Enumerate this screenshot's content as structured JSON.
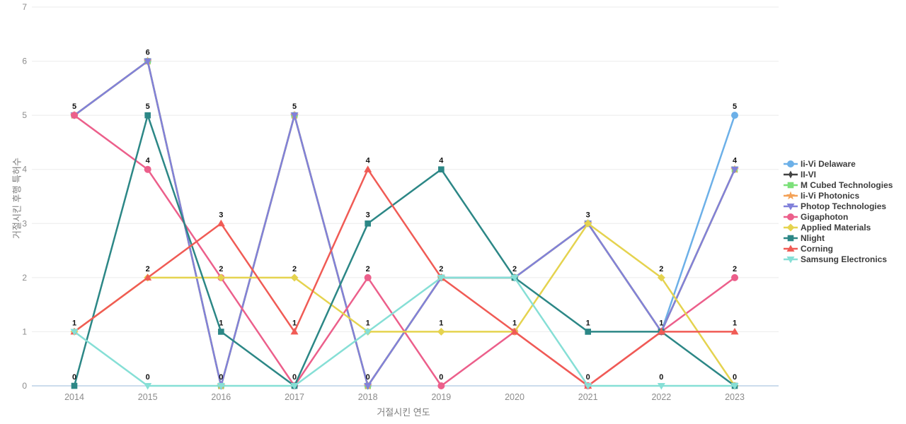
{
  "chart_data": {
    "type": "line",
    "title": "",
    "xlabel": "거절시킨 연도",
    "ylabel": "거절시킨 후행 특허수",
    "categories": [
      "2014",
      "2015",
      "2016",
      "2017",
      "2018",
      "2019",
      "2020",
      "2021",
      "2022",
      "2023"
    ],
    "ylim": [
      0,
      7
    ],
    "yticks": [
      0,
      1,
      2,
      3,
      4,
      5,
      6,
      7
    ],
    "grid": true,
    "legend_position": "right",
    "series": [
      {
        "name": "Ii-Vi Delaware",
        "color": "#6cb0e8",
        "marker": "circle",
        "values": [
          5,
          6,
          0,
          5,
          0,
          2,
          2,
          3,
          1,
          5
        ]
      },
      {
        "name": "II-VI",
        "color": "#434343",
        "marker": "thin-diamond",
        "values": [
          5,
          6,
          0,
          5,
          0,
          2,
          2,
          3,
          1,
          4
        ]
      },
      {
        "name": "M Cubed Technologies",
        "color": "#7ce07a",
        "marker": "square",
        "values": [
          5,
          6,
          0,
          5,
          0,
          2,
          2,
          3,
          1,
          4
        ]
      },
      {
        "name": "Ii-Vi Photonics",
        "color": "#f4a258",
        "marker": "star",
        "values": [
          5,
          6,
          0,
          5,
          0,
          2,
          2,
          3,
          1,
          4
        ]
      },
      {
        "name": "Photop Technologies",
        "color": "#8181da",
        "marker": "tri-down",
        "values": [
          5,
          6,
          0,
          5,
          0,
          2,
          2,
          3,
          1,
          4
        ]
      },
      {
        "name": "Gigaphoton",
        "color": "#ec5f8b",
        "marker": "circle",
        "values": [
          5,
          4,
          2,
          0,
          2,
          0,
          1,
          0,
          1,
          2
        ]
      },
      {
        "name": "Applied Materials",
        "color": "#e5d34f",
        "marker": "diamond",
        "values": [
          1,
          2,
          2,
          2,
          1,
          1,
          1,
          3,
          2,
          0
        ]
      },
      {
        "name": "Nlight",
        "color": "#2c8786",
        "marker": "square",
        "values": [
          0,
          5,
          1,
          0,
          3,
          4,
          2,
          1,
          1,
          0
        ]
      },
      {
        "name": "Corning",
        "color": "#f05b55",
        "marker": "triangle-up",
        "values": [
          1,
          2,
          3,
          1,
          4,
          2,
          1,
          0,
          1,
          1
        ]
      },
      {
        "name": "Samsung Electronics",
        "color": "#86dfd6",
        "marker": "triangle-down",
        "values": [
          1,
          0,
          0,
          0,
          1,
          2,
          2,
          0,
          0,
          0
        ]
      }
    ],
    "point_labels": {
      "2014": [
        5,
        1,
        0
      ],
      "2015": [
        6,
        5,
        4,
        2,
        0
      ],
      "2016": [
        3,
        2,
        1,
        0
      ],
      "2017": [
        5,
        2,
        1,
        0
      ],
      "2018": [
        4,
        3,
        2,
        1,
        0
      ],
      "2019": [
        4,
        2,
        1,
        0
      ],
      "2020": [
        2,
        1
      ],
      "2021": [
        3,
        1,
        0
      ],
      "2022": [
        2,
        1,
        0
      ],
      "2023": [
        5,
        4,
        2,
        1,
        0
      ]
    }
  },
  "colors": {
    "background": "#ffffff",
    "gridline": "#ebebeb",
    "zeroline": "#bcd0e5",
    "tick_label": "#8c8c8c",
    "axis_title": "#7d7d7d",
    "value_label": "#111111",
    "legend_text": "#3c3c3c"
  }
}
